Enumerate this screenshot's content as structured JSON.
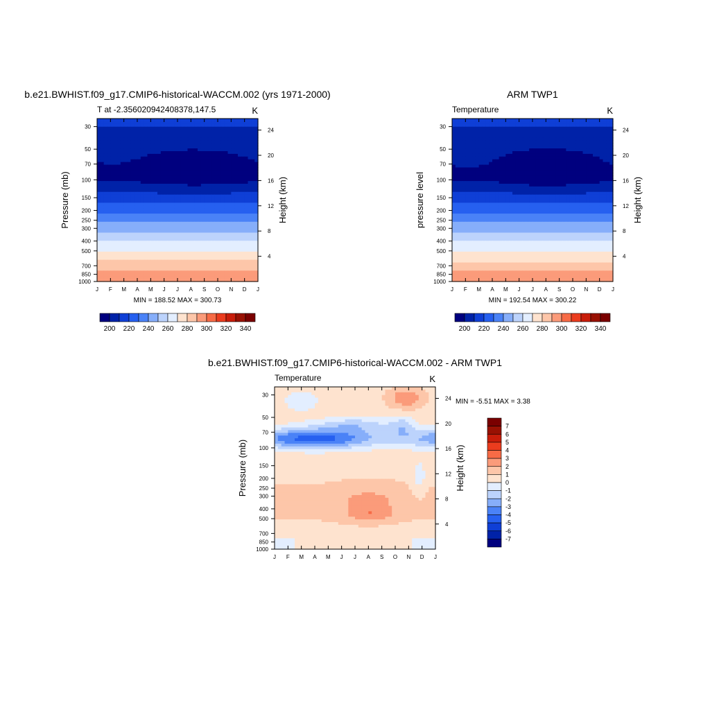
{
  "chart_data": [
    {
      "type": "heatmap",
      "title": "b.e21.BWHIST.f09_g17.CMIP6-historical-WACCM.002 (yrs 1971-2000)",
      "subtitle_left": "T at -2.356020942408378,147.5",
      "subtitle_right": "K",
      "ylabel": "Pressure (mb)",
      "ylabel_right": "Height (km)",
      "x_ticks": [
        "J",
        "F",
        "M",
        "A",
        "M",
        "J",
        "J",
        "A",
        "S",
        "O",
        "N",
        "D",
        "J"
      ],
      "y_ticks": [
        30,
        50,
        70,
        100,
        150,
        200,
        250,
        300,
        400,
        500,
        700,
        850,
        1000
      ],
      "y_right_ticks": [
        24,
        20,
        16,
        12,
        8,
        4
      ],
      "stats": "MIN = 188.52 MAX = 300.73",
      "colorbar_ticks": [
        200,
        220,
        240,
        260,
        280,
        300,
        320,
        340
      ],
      "contour_levels": [
        200,
        210,
        220,
        230,
        240,
        250,
        260,
        270,
        280,
        290,
        300,
        310,
        320,
        330,
        340
      ],
      "min": 188.52,
      "max": 300.73
    },
    {
      "type": "heatmap",
      "title": "ARM TWP1",
      "subtitle_left": "Temperature",
      "subtitle_right": "K",
      "ylabel": "pressure level",
      "ylabel_right": "Height (km)",
      "x_ticks": [
        "J",
        "F",
        "M",
        "A",
        "M",
        "J",
        "J",
        "A",
        "S",
        "O",
        "N",
        "D",
        "J"
      ],
      "y_ticks": [
        30,
        50,
        70,
        100,
        150,
        200,
        250,
        300,
        400,
        500,
        700,
        850,
        1000
      ],
      "y_right_ticks": [
        24,
        20,
        16,
        12,
        8,
        4
      ],
      "stats": "MIN = 192.54 MAX = 300.22",
      "colorbar_ticks": [
        200,
        220,
        240,
        260,
        280,
        300,
        320,
        340
      ],
      "contour_levels": [
        200,
        210,
        220,
        230,
        240,
        250,
        260,
        270,
        280,
        290,
        300,
        310,
        320,
        330,
        340
      ],
      "min": 192.54,
      "max": 300.22
    },
    {
      "type": "heatmap",
      "title": "b.e21.BWHIST.f09_g17.CMIP6-historical-WACCM.002 - ARM TWP1",
      "subtitle_left": "Temperature",
      "subtitle_right": "K",
      "ylabel": "Pressure (mb)",
      "ylabel_right": "Height (km)",
      "x_ticks": [
        "J",
        "F",
        "M",
        "A",
        "M",
        "J",
        "J",
        "A",
        "S",
        "O",
        "N",
        "D",
        "J"
      ],
      "y_ticks": [
        30,
        50,
        70,
        100,
        150,
        200,
        250,
        300,
        400,
        500,
        700,
        850,
        1000
      ],
      "y_right_ticks": [
        24,
        20,
        16,
        12,
        8,
        4
      ],
      "stats": "MIN =  -5.51 MAX =   3.38",
      "colorbar_ticks": [
        7,
        6,
        5,
        4,
        3,
        2,
        1,
        0,
        -1,
        -2,
        -3,
        -4,
        -5,
        -6,
        -7
      ],
      "contour_levels": [
        -7,
        -6,
        -5,
        -4,
        -3,
        -2,
        -1,
        0,
        1,
        2,
        3,
        4,
        5,
        6,
        7
      ],
      "min": -5.51,
      "max": 3.38
    }
  ],
  "palette": [
    "#00007f",
    "#0022a8",
    "#0f3fd6",
    "#2660f0",
    "#4a82f7",
    "#86aefa",
    "#bcd3fc",
    "#e3eeff",
    "#fee3cf",
    "#fdc6a9",
    "#fb9b7a",
    "#f76b46",
    "#eb3c1e",
    "#c81d0a",
    "#991103",
    "#7a0000"
  ]
}
